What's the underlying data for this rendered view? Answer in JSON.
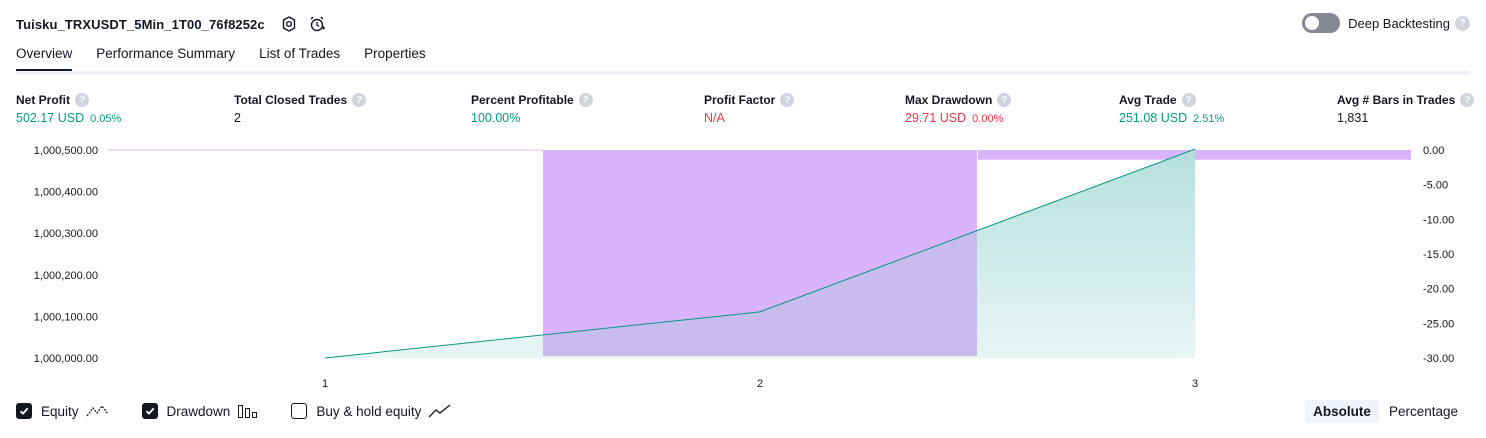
{
  "header": {
    "strategy_name": "Tuisku_TRXUSDT_5Min_1T00_76f8252c",
    "deep_backtesting_label": "Deep Backtesting",
    "deep_backtesting_enabled": false
  },
  "tabs": [
    {
      "label": "Overview",
      "active": true
    },
    {
      "label": "Performance Summary",
      "active": false
    },
    {
      "label": "List of Trades",
      "active": false
    },
    {
      "label": "Properties",
      "active": false
    }
  ],
  "metrics": {
    "net_profit": {
      "label": "Net Profit",
      "value": "502.17 USD",
      "pct": "0.05%"
    },
    "total_closed_trades": {
      "label": "Total Closed Trades",
      "value": "2"
    },
    "percent_profitable": {
      "label": "Percent Profitable",
      "value": "100.00%"
    },
    "profit_factor": {
      "label": "Profit Factor",
      "value": "N/A"
    },
    "max_drawdown": {
      "label": "Max Drawdown",
      "value": "29.71 USD",
      "pct": "0.00%"
    },
    "avg_trade": {
      "label": "Avg Trade",
      "value": "251.08 USD",
      "pct": "2.51%"
    },
    "avg_bars": {
      "label": "Avg # Bars in Trades",
      "value": "1,831"
    }
  },
  "chart_data": {
    "type": "area",
    "x": [
      1,
      2,
      3
    ],
    "x_ticks": [
      "1",
      "2",
      "3"
    ],
    "left_axis": {
      "ticks": [
        "1,000,500.00",
        "1,000,400.00",
        "1,000,300.00",
        "1,000,200.00",
        "1,000,100.00",
        "1,000,000.00"
      ],
      "range": [
        1000000,
        1000500
      ]
    },
    "right_axis": {
      "ticks": [
        "0.00",
        "-5.00",
        "-10.00",
        "-15.00",
        "-20.00",
        "-25.00",
        "-30.00"
      ],
      "range": [
        -30,
        0
      ]
    },
    "series": [
      {
        "name": "Equity",
        "axis": "left",
        "values": [
          1000000.0,
          1000111.0,
          1000502.17
        ]
      },
      {
        "name": "Drawdown",
        "axis": "right",
        "values": [
          0,
          -29.71,
          -1.4
        ]
      }
    ],
    "colors": {
      "equity_line": "#089981",
      "equity_fill": "#b2dfdb",
      "drawdown_fill": "#e1bee7",
      "drawdown_bar": "#d9b3fb",
      "overlap_fill": "#c7bced"
    }
  },
  "legend": {
    "equity": {
      "label": "Equity",
      "checked": true
    },
    "drawdown": {
      "label": "Drawdown",
      "checked": true
    },
    "buy_hold": {
      "label": "Buy & hold equity",
      "checked": false
    }
  },
  "view_mode": {
    "absolute_label": "Absolute",
    "percentage_label": "Percentage",
    "selected": "Absolute"
  }
}
